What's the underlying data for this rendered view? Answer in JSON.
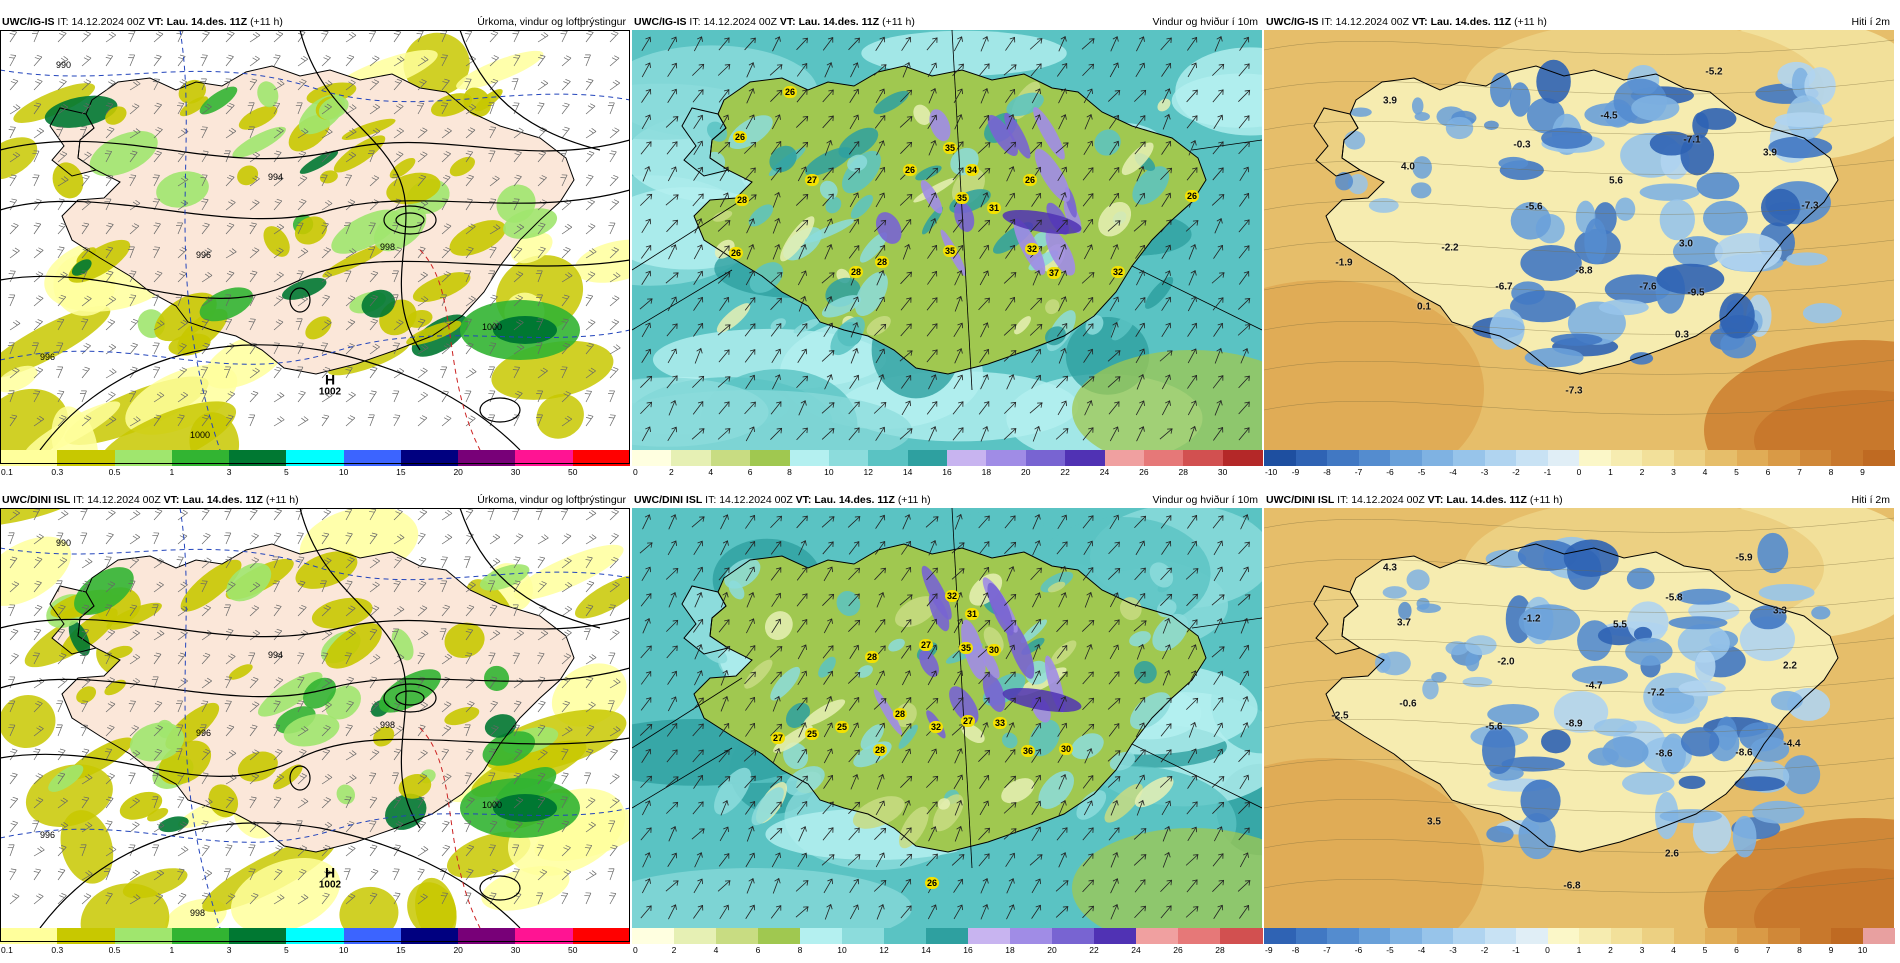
{
  "panels": [
    {
      "id": "p1",
      "model": "UWC/IG-IS",
      "it_label": "IT:",
      "it": "14.12.2024 00Z",
      "vt_label": "VT:",
      "vt": "Lau. 14.des. 11Z",
      "lead": "(+11 h)",
      "title": "Úrkoma, vindur og loftþrýstingur",
      "kind": "precip",
      "pressure_high": {
        "letter": "H",
        "value": "1002"
      },
      "isobar_labels": [
        "990",
        "994",
        "996",
        "998",
        "1000",
        "1000",
        "996"
      ],
      "colorbar": {
        "ticks": [
          "0.1",
          "0.3",
          "0.5",
          "1",
          "3",
          "5",
          "10",
          "15",
          "20",
          "30",
          "50"
        ],
        "colors": [
          "#ffff9c",
          "#c8c800",
          "#a0e66e",
          "#32b432",
          "#007832",
          "#00ffff",
          "#3c64ff",
          "#000080",
          "#780078",
          "#ff1493",
          "#ff0000"
        ]
      }
    },
    {
      "id": "p2",
      "model": "UWC/IG-IS",
      "it_label": "IT:",
      "it": "14.12.2024 00Z",
      "vt_label": "VT:",
      "vt": "Lau. 14.des. 11Z",
      "lead": "(+11 h)",
      "title": "Vindur og hviður í 10m",
      "kind": "wind",
      "gust_labels": [
        "26",
        "26",
        "27",
        "26",
        "35",
        "34",
        "35",
        "31",
        "26",
        "26",
        "26",
        "28",
        "28",
        "35",
        "32",
        "37",
        "32",
        "28"
      ],
      "colorbar": {
        "ticks": [
          "0",
          "2",
          "4",
          "6",
          "8",
          "10",
          "12",
          "14",
          "16",
          "18",
          "20",
          "22",
          "24",
          "26",
          "28",
          "30"
        ],
        "colors": [
          "#ffffe0",
          "#e6f0b4",
          "#c8dc82",
          "#a0c850",
          "#b4f0f0",
          "#8cdcdc",
          "#5ac3c3",
          "#2ea0a0",
          "#c8b4f0",
          "#a08ce6",
          "#7864d2",
          "#5032b4",
          "#f0a0a0",
          "#e67878",
          "#d25050",
          "#b42828"
        ]
      }
    },
    {
      "id": "p3",
      "model": "UWC/IG-IS",
      "it_label": "IT:",
      "it": "14.12.2024 00Z",
      "vt_label": "VT:",
      "vt": "Lau. 14.des. 11Z",
      "lead": "(+11 h)",
      "title": "Hiti í 2m",
      "kind": "temp",
      "temp_labels": [
        "-5.2",
        "3.9",
        "-4.5",
        "-7.1",
        "3.9",
        "4.0",
        "-0.3",
        "5.6",
        "-5.6",
        "-7.3",
        "-1.9",
        "-2.2",
        "3.0",
        "-8.8",
        "-6.7",
        "-7.6",
        "-9.5",
        "0.1",
        "0.3",
        "-7.3"
      ],
      "colorbar": {
        "ticks": [
          "-10",
          "-9",
          "-8",
          "-7",
          "-6",
          "-5",
          "-4",
          "-3",
          "-2",
          "-1",
          "0",
          "1",
          "2",
          "3",
          "4",
          "5",
          "6",
          "7",
          "8",
          "9"
        ],
        "colors": [
          "#1e4fa0",
          "#2f63b4",
          "#4178c3",
          "#548ccf",
          "#69a0d9",
          "#7fb2e2",
          "#97c4ea",
          "#b0d4f0",
          "#c8e2f4",
          "#e0eef6",
          "#fbf7c8",
          "#f6ecb0",
          "#f2e09a",
          "#ecd082",
          "#e6be6a",
          "#e0ac56",
          "#d99a46",
          "#d08838",
          "#c8782c",
          "#bf6a22"
        ]
      }
    },
    {
      "id": "p4",
      "model": "UWC/DINI ISL",
      "it_label": "IT:",
      "it": "14.12.2024 00Z",
      "vt_label": "VT:",
      "vt": "Lau. 14.des. 11Z",
      "lead": "(+11 h)",
      "title": "Úrkoma, vindur og loftþrýstingur",
      "kind": "precip",
      "pressure_high": {
        "letter": "H",
        "value": "1002"
      },
      "isobar_labels": [
        "990",
        "994",
        "996",
        "998",
        "1000",
        "998",
        "996"
      ],
      "colorbar": {
        "ticks": [
          "0.1",
          "0.3",
          "0.5",
          "1",
          "3",
          "5",
          "10",
          "15",
          "20",
          "30",
          "50"
        ],
        "colors": [
          "#ffff9c",
          "#c8c800",
          "#a0e66e",
          "#32b432",
          "#007832",
          "#00ffff",
          "#3c64ff",
          "#000080",
          "#780078",
          "#ff1493",
          "#ff0000"
        ]
      }
    },
    {
      "id": "p5",
      "model": "UWC/DINI ISL",
      "it_label": "IT:",
      "it": "14.12.2024 00Z",
      "vt_label": "VT:",
      "vt": "Lau. 14.des. 11Z",
      "lead": "(+11 h)",
      "title": "Vindur og hviður í 10m",
      "kind": "wind",
      "gust_labels": [
        "32",
        "31",
        "28",
        "27",
        "35",
        "30",
        "27",
        "25",
        "25",
        "28",
        "28",
        "32",
        "27",
        "33",
        "36",
        "30",
        "26"
      ],
      "colorbar": {
        "ticks": [
          "0",
          "2",
          "4",
          "6",
          "8",
          "10",
          "12",
          "14",
          "16",
          "18",
          "20",
          "22",
          "24",
          "26",
          "28"
        ],
        "colors": [
          "#ffffe0",
          "#e6f0b4",
          "#c8dc82",
          "#a0c850",
          "#b4f0f0",
          "#8cdcdc",
          "#5ac3c3",
          "#2ea0a0",
          "#c8b4f0",
          "#a08ce6",
          "#7864d2",
          "#5032b4",
          "#f0a0a0",
          "#e67878",
          "#d25050"
        ]
      }
    },
    {
      "id": "p6",
      "model": "UWC/DINI ISL",
      "it_label": "IT:",
      "it": "14.12.2024 00Z",
      "vt_label": "VT:",
      "vt": "Lau. 14.des. 11Z",
      "lead": "(+11 h)",
      "title": "Hiti í 2m",
      "kind": "temp",
      "temp_labels": [
        "-5.9",
        "4.3",
        "-5.8",
        "3.3",
        "3.7",
        "-1.2",
        "5.5",
        "-2.0",
        "2.2",
        "-4.7",
        "-7.2",
        "-0.6",
        "-2.5",
        "-5.6",
        "-8.9",
        "-8.6",
        "-8.6",
        "-4.4",
        "3.5",
        "2.6",
        "-6.8"
      ],
      "colorbar": {
        "ticks": [
          "-9",
          "-8",
          "-7",
          "-6",
          "-5",
          "-4",
          "-3",
          "-2",
          "-1",
          "0",
          "1",
          "2",
          "3",
          "4",
          "5",
          "6",
          "7",
          "8",
          "9",
          "10"
        ],
        "colors": [
          "#2f63b4",
          "#4178c3",
          "#548ccf",
          "#69a0d9",
          "#7fb2e2",
          "#97c4ea",
          "#b0d4f0",
          "#c8e2f4",
          "#e0eef6",
          "#fbf7c8",
          "#f6ecb0",
          "#f2e09a",
          "#ecd082",
          "#e6be6a",
          "#e0ac56",
          "#d99a46",
          "#d08838",
          "#c8782c",
          "#bf6a22",
          "#e8a0a0"
        ]
      }
    }
  ]
}
